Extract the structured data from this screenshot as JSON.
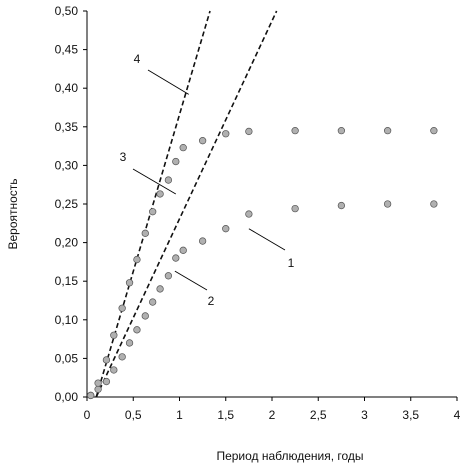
{
  "chart_data": {
    "type": "scatter",
    "xlabel": "Период наблюдения, годы",
    "ylabel": "Вероятность",
    "xlim": [
      0,
      4
    ],
    "ylim": [
      0,
      0.5
    ],
    "x_ticks": [
      "0",
      "0,5",
      "1",
      "1,5",
      "2",
      "2,5",
      "3",
      "3,5",
      "4"
    ],
    "y_ticks": [
      "0,00",
      "0,05",
      "0,10",
      "0,15",
      "0,20",
      "0,25",
      "0,30",
      "0,35",
      "0,40",
      "0,45",
      "0,50"
    ],
    "grid": false,
    "legend": "none",
    "series": [
      {
        "label": "1",
        "style": "points",
        "color": "#b0b0b0",
        "x": [
          0.04,
          0.12,
          0.21,
          0.29,
          0.38,
          0.46,
          0.54,
          0.63,
          0.71,
          0.79,
          0.88,
          0.96,
          1.04,
          1.25,
          1.5,
          1.75,
          2.25,
          2.75,
          3.25,
          3.75
        ],
        "y": [
          0.002,
          0.01,
          0.02,
          0.035,
          0.052,
          0.07,
          0.087,
          0.105,
          0.123,
          0.14,
          0.157,
          0.18,
          0.19,
          0.202,
          0.218,
          0.237,
          0.244,
          0.248,
          0.25,
          0.25
        ]
      },
      {
        "label": "2",
        "style": "dashed",
        "color": "#111111",
        "x": [
          0.1,
          2.05
        ],
        "y": [
          0.0,
          0.5
        ]
      },
      {
        "label": "3",
        "style": "points",
        "color": "#b0b0b0",
        "x": [
          0.04,
          0.12,
          0.21,
          0.29,
          0.38,
          0.46,
          0.54,
          0.63,
          0.71,
          0.79,
          0.88,
          0.96,
          1.04,
          1.25,
          1.5,
          1.75,
          2.25,
          2.75,
          3.25,
          3.75
        ],
        "y": [
          0.002,
          0.018,
          0.048,
          0.08,
          0.115,
          0.148,
          0.178,
          0.212,
          0.24,
          0.263,
          0.281,
          0.305,
          0.323,
          0.332,
          0.341,
          0.344,
          0.345,
          0.345,
          0.345,
          0.345
        ]
      },
      {
        "label": "4",
        "style": "dashed",
        "color": "#111111",
        "x": [
          0.1,
          1.33
        ],
        "y": [
          0.0,
          0.5
        ]
      }
    ],
    "callouts": [
      "1",
      "2",
      "3",
      "4"
    ]
  }
}
